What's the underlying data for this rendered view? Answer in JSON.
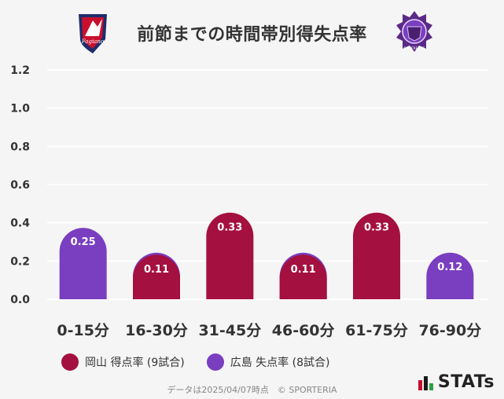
{
  "header": {
    "title": "前節までの時間帯別得失点率",
    "team_left_logo_text": "Fagiano",
    "team_right_logo_text": "SANFRECCE"
  },
  "colors": {
    "okayama": "#a4103f",
    "hiroshima": "#7a3ec0",
    "grid": "#ffffff",
    "axis_text": "#333333"
  },
  "chart_data": {
    "type": "bar",
    "title": "前節までの時間帯別得失点率",
    "categories": [
      "0-15分",
      "16-30分",
      "31-45分",
      "46-60分",
      "61-75分",
      "76-90分"
    ],
    "ylim": [
      0,
      1.2
    ],
    "yticks": [
      "0.0",
      "0.2",
      "0.4",
      "0.6",
      "0.8",
      "1.0",
      "1.2"
    ],
    "series": [
      {
        "name": "岡山 得点率 (9試合)",
        "values": [
          0,
          0.11,
          0.33,
          0.11,
          0.33,
          0
        ],
        "labels": [
          "",
          "0.11",
          "0.33",
          "0.11",
          "0.33",
          ""
        ]
      },
      {
        "name": "広島 失点率 (8試合)",
        "values": [
          0.25,
          0.12,
          0,
          0.12,
          0,
          0.12
        ],
        "labels": [
          "0.25",
          "0.12",
          "",
          "0.12",
          "",
          "0.12"
        ]
      }
    ]
  },
  "legend": {
    "okayama": "岡山 得点率 (9試合)",
    "hiroshima": "広島 失点率 (8試合)"
  },
  "footer": {
    "note": "データは2025/04/07時点　© SPORTERIA",
    "brand": "STATs"
  }
}
